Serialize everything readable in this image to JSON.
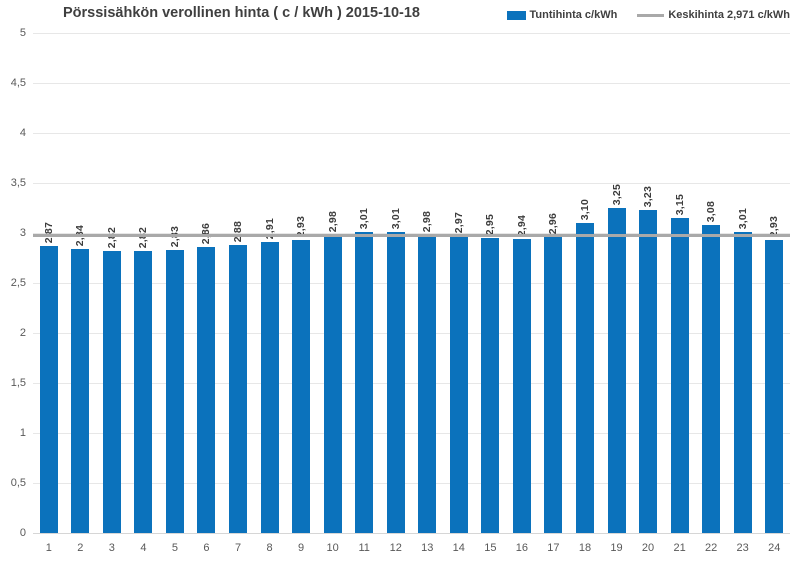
{
  "chart_data": {
    "type": "bar",
    "title": "Pörssisähkön verollinen hinta ( c / kWh ) 2015-10-18",
    "xlabel": "",
    "ylabel": "",
    "ylim": [
      0,
      5
    ],
    "grid": true,
    "categories": [
      "1",
      "2",
      "3",
      "4",
      "5",
      "6",
      "7",
      "8",
      "9",
      "10",
      "11",
      "12",
      "13",
      "14",
      "15",
      "16",
      "17",
      "18",
      "19",
      "20",
      "21",
      "22",
      "23",
      "24"
    ],
    "values": [
      2.87,
      2.84,
      2.82,
      2.82,
      2.83,
      2.86,
      2.88,
      2.91,
      2.93,
      2.98,
      3.01,
      3.01,
      2.98,
      2.97,
      2.95,
      2.94,
      2.96,
      3.1,
      3.25,
      3.23,
      3.15,
      3.08,
      3.01,
      2.93
    ],
    "value_labels": [
      "2,87",
      "2,84",
      "2,82",
      "2,82",
      "2,83",
      "2,86",
      "2,88",
      "2,91",
      "2,93",
      "2,98",
      "3,01",
      "3,01",
      "2,98",
      "2,97",
      "2,95",
      "2,94",
      "2,96",
      "3,10",
      "3,25",
      "3,23",
      "3,15",
      "3,08",
      "3,01",
      "2,93"
    ],
    "average": 2.971,
    "y_ticks": [
      0,
      0.5,
      1,
      1.5,
      2,
      2.5,
      3,
      3.5,
      4,
      4.5,
      5
    ],
    "y_tick_labels": [
      "0",
      "0,5",
      "1",
      "1,5",
      "2",
      "2,5",
      "3",
      "3,5",
      "4",
      "4,5",
      "5"
    ],
    "legend": {
      "position": "top-right",
      "series_label": "Tuntihinta c/kWh",
      "average_label": "Keskihinta 2,971 c/kWh"
    },
    "colors": {
      "bar": "#0b72bc",
      "average_line": "#a9a9a9",
      "gridline": "#e7e7e7",
      "axis_line": "#d6d6d6",
      "tick_text": "#595959",
      "label_text": "#3c3c3c",
      "title_text": "#3f3f3f"
    }
  }
}
